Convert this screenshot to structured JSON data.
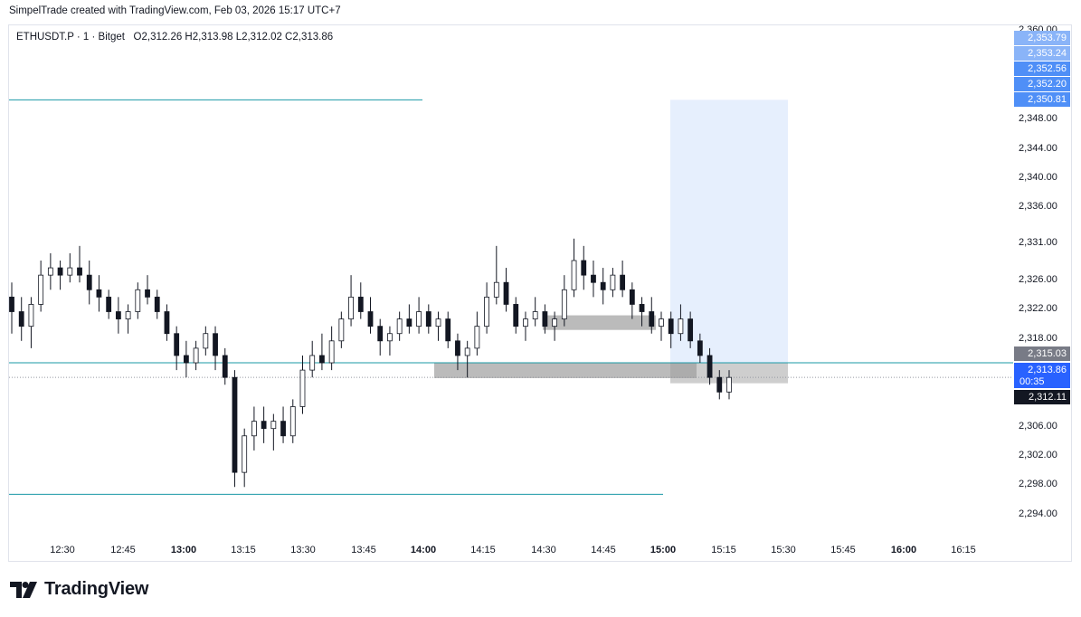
{
  "header": {
    "text": "SimpelTrade created with TradingView.com, Feb 03, 2026 15:17 UTC+7"
  },
  "legend": {
    "symbol": "ETHUSDT.P · 1 · Bitget",
    "ohlc": "O2,312.26   H2,313.98   L2,312.02   C2,313.86"
  },
  "colors": {
    "up": "#26a69a",
    "down": "#131722",
    "level_line": "#1a98a6",
    "zone": "#9e9e9e",
    "projection": "#d6e4fb",
    "tag_blue": "#4f8ff7",
    "tag_dark": "#131722",
    "tag_grey": "#787b86"
  },
  "price_axis": {
    "labels": [
      "2,360.00",
      "2,348.00",
      "2,344.00",
      "2,340.00",
      "2,336.00",
      "2,331.00",
      "2,326.00",
      "2,322.00",
      "2,318.00",
      "2,306.00",
      "2,302.00",
      "2,298.00",
      "2,294.00"
    ],
    "tags": [
      {
        "value": "2,353.79",
        "style": "blue_light"
      },
      {
        "value": "2,353.24",
        "style": "blue_light"
      },
      {
        "value": "2,352.56",
        "style": "blue"
      },
      {
        "value": "2,352.20",
        "style": "blue"
      },
      {
        "value": "2,350.81",
        "style": "blue"
      },
      {
        "value": "2,315.03",
        "style": "grey"
      },
      {
        "value": "2,313.86",
        "style": "blue"
      },
      {
        "value": "00:35",
        "style": "blue"
      },
      {
        "value": "2,312.11",
        "style": "dark"
      }
    ]
  },
  "time_axis": {
    "labels": [
      {
        "text": "12:30",
        "bold": false
      },
      {
        "text": "12:45",
        "bold": false
      },
      {
        "text": "13:00",
        "bold": true
      },
      {
        "text": "13:15",
        "bold": false
      },
      {
        "text": "13:30",
        "bold": false
      },
      {
        "text": "13:45",
        "bold": false
      },
      {
        "text": "14:00",
        "bold": true
      },
      {
        "text": "14:15",
        "bold": false
      },
      {
        "text": "14:30",
        "bold": false
      },
      {
        "text": "14:45",
        "bold": false
      },
      {
        "text": "15:00",
        "bold": true
      },
      {
        "text": "15:15",
        "bold": false
      },
      {
        "text": "15:30",
        "bold": false
      },
      {
        "text": "15:45",
        "bold": false
      },
      {
        "text": "16:00",
        "bold": true
      },
      {
        "text": "16:15",
        "bold": false
      }
    ]
  },
  "levels": [
    {
      "name": "upper-level-line",
      "price": 2351.0
    },
    {
      "name": "middle-level-line",
      "price": 2315.0
    },
    {
      "name": "lower-level-line",
      "price": 2297.0
    }
  ],
  "chart_data": {
    "type": "candlestick",
    "price_ylim": [
      2291.1,
      2361.2
    ],
    "candles": [
      [
        2324,
        2326,
        2319,
        2322
      ],
      [
        2322,
        2324,
        2318,
        2320
      ],
      [
        2320,
        2324,
        2317,
        2323
      ],
      [
        2323,
        2329,
        2322,
        2327
      ],
      [
        2327,
        2330,
        2325,
        2328
      ],
      [
        2328,
        2329,
        2325,
        2327
      ],
      [
        2327,
        2330,
        2326,
        2328
      ],
      [
        2328,
        2331,
        2326,
        2327
      ],
      [
        2327,
        2329,
        2323,
        2325
      ],
      [
        2325,
        2327,
        2322,
        2324
      ],
      [
        2324,
        2325,
        2321,
        2322
      ],
      [
        2322,
        2324,
        2319,
        2321
      ],
      [
        2321,
        2323,
        2319,
        2322
      ],
      [
        2322,
        2326,
        2321,
        2325
      ],
      [
        2325,
        2327,
        2323,
        2324
      ],
      [
        2324,
        2325,
        2321,
        2322
      ],
      [
        2322,
        2323,
        2318,
        2319
      ],
      [
        2319,
        2320,
        2314,
        2316
      ],
      [
        2316,
        2318,
        2313,
        2315
      ],
      [
        2315,
        2318,
        2314,
        2317
      ],
      [
        2317,
        2320,
        2316,
        2319
      ],
      [
        2319,
        2320,
        2314,
        2316
      ],
      [
        2316,
        2317,
        2312,
        2313
      ],
      [
        2313,
        2314,
        2298,
        2300
      ],
      [
        2300,
        2306,
        2298,
        2305
      ],
      [
        2305,
        2309,
        2303,
        2307
      ],
      [
        2307,
        2309,
        2304,
        2306
      ],
      [
        2306,
        2308,
        2303,
        2307
      ],
      [
        2307,
        2309,
        2304,
        2305
      ],
      [
        2305,
        2310,
        2304,
        2309
      ],
      [
        2309,
        2316,
        2308,
        2314
      ],
      [
        2314,
        2318,
        2313,
        2316
      ],
      [
        2316,
        2319,
        2314,
        2315
      ],
      [
        2315,
        2320,
        2314,
        2318
      ],
      [
        2318,
        2322,
        2317,
        2321
      ],
      [
        2321,
        2327,
        2320,
        2324
      ],
      [
        2324,
        2326,
        2321,
        2322
      ],
      [
        2322,
        2324,
        2319,
        2320
      ],
      [
        2320,
        2321,
        2316,
        2318
      ],
      [
        2318,
        2320,
        2316,
        2319
      ],
      [
        2319,
        2322,
        2318,
        2321
      ],
      [
        2321,
        2323,
        2319,
        2320
      ],
      [
        2320,
        2324,
        2319,
        2322
      ],
      [
        2322,
        2323,
        2319,
        2320
      ],
      [
        2320,
        2322,
        2318,
        2321
      ],
      [
        2321,
        2322,
        2317,
        2318
      ],
      [
        2318,
        2319,
        2314,
        2316
      ],
      [
        2316,
        2318,
        2313,
        2317
      ],
      [
        2317,
        2322,
        2316,
        2320
      ],
      [
        2320,
        2326,
        2319,
        2324
      ],
      [
        2324,
        2331,
        2323,
        2326
      ],
      [
        2326,
        2328,
        2322,
        2323
      ],
      [
        2323,
        2324,
        2319,
        2320
      ],
      [
        2320,
        2322,
        2318,
        2321
      ],
      [
        2321,
        2324,
        2320,
        2322
      ],
      [
        2322,
        2323,
        2319,
        2320
      ],
      [
        2320,
        2322,
        2318,
        2321
      ],
      [
        2321,
        2327,
        2320,
        2325
      ],
      [
        2325,
        2332,
        2324,
        2329
      ],
      [
        2329,
        2331,
        2325,
        2327
      ],
      [
        2327,
        2329,
        2324,
        2326
      ],
      [
        2326,
        2328,
        2323,
        2325
      ],
      [
        2325,
        2328,
        2324,
        2327
      ],
      [
        2327,
        2329,
        2324,
        2325
      ],
      [
        2325,
        2326,
        2321,
        2323
      ],
      [
        2323,
        2324,
        2320,
        2322
      ],
      [
        2322,
        2324,
        2319,
        2320
      ],
      [
        2320,
        2322,
        2318,
        2321
      ],
      [
        2321,
        2322,
        2317,
        2319
      ],
      [
        2319,
        2323,
        2318,
        2321
      ],
      [
        2321,
        2322,
        2317,
        2318
      ],
      [
        2318,
        2319,
        2315,
        2316
      ],
      [
        2316,
        2317,
        2312,
        2313
      ],
      [
        2313,
        2314,
        2310,
        2311
      ],
      [
        2311,
        2314,
        2310,
        2313
      ]
    ]
  }
}
